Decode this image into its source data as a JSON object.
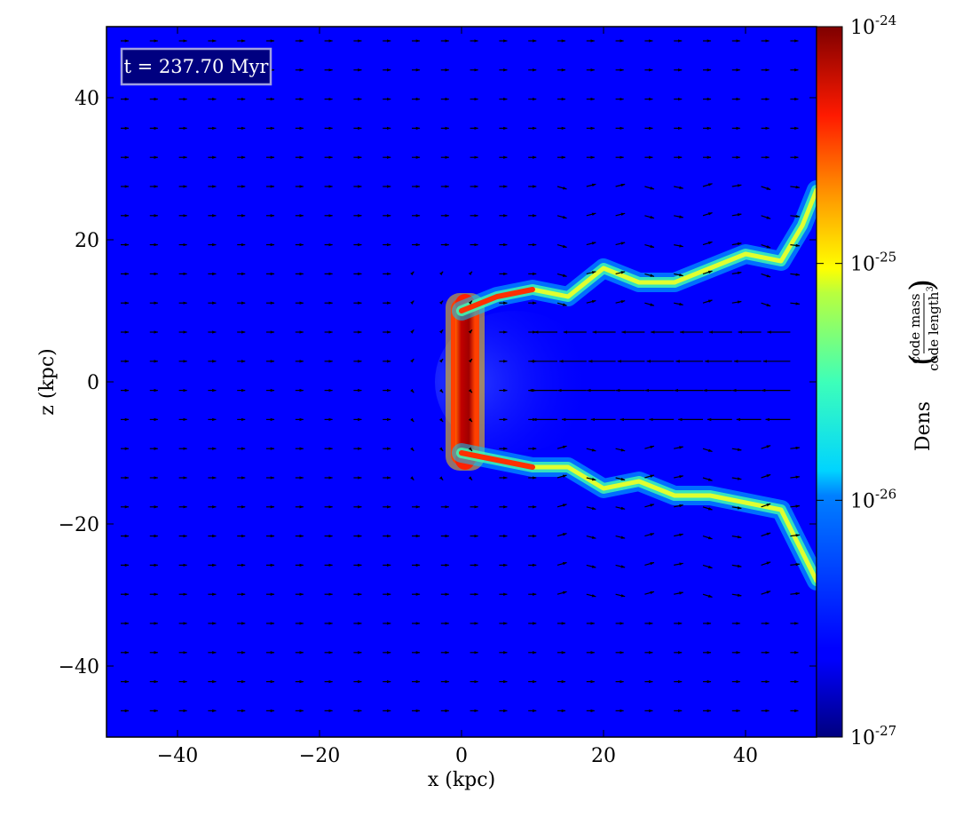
{
  "chart_data": {
    "type": "heatmap",
    "title": "",
    "annotation": "t = 237.70 Myr",
    "xlabel": "x (kpc)",
    "ylabel": "z (kpc)",
    "xlim": [
      -50,
      50
    ],
    "ylim": [
      -50,
      50
    ],
    "x_ticks": [
      -40,
      -20,
      0,
      20,
      40
    ],
    "x_tick_labels": [
      "−40",
      "−20",
      "0",
      "20",
      "40"
    ],
    "y_ticks": [
      -40,
      -20,
      0,
      20,
      40
    ],
    "y_tick_labels": [
      "−40",
      "−20",
      "0",
      "20",
      "40"
    ],
    "colormap": "jet",
    "colorbar": {
      "label_main": "Dens",
      "label_numerator": "code mass",
      "label_denominator": "code length",
      "label_denominator_exp": "3",
      "scale": "log",
      "range": [
        1e-27,
        1e-24
      ],
      "ticks": [
        {
          "value": 1e-24,
          "base": "10",
          "exp": "-24"
        },
        {
          "value": 1e-25,
          "base": "10",
          "exp": "-25"
        },
        {
          "value": 1e-26,
          "base": "10",
          "exp": "-26"
        },
        {
          "value": 1e-27,
          "base": "10",
          "exp": "-27"
        }
      ]
    },
    "background_density": 3e-27,
    "features": [
      {
        "name": "dense-core-column",
        "x_center": 0.5,
        "z_range": [
          -11,
          11
        ],
        "peak_density": 9e-25
      },
      {
        "name": "upper-tail",
        "points": [
          [
            0,
            10
          ],
          [
            5,
            12
          ],
          [
            10,
            13
          ],
          [
            15,
            12
          ],
          [
            20,
            16
          ],
          [
            25,
            14
          ],
          [
            30,
            14
          ],
          [
            35,
            16
          ],
          [
            40,
            18
          ],
          [
            45,
            17
          ],
          [
            48,
            22
          ],
          [
            50,
            27
          ]
        ]
      },
      {
        "name": "lower-tail",
        "points": [
          [
            0,
            -10
          ],
          [
            5,
            -11
          ],
          [
            10,
            -12
          ],
          [
            15,
            -12
          ],
          [
            20,
            -15
          ],
          [
            25,
            -14
          ],
          [
            30,
            -16
          ],
          [
            35,
            -16
          ],
          [
            40,
            -17
          ],
          [
            45,
            -18
          ],
          [
            48,
            -24
          ],
          [
            50,
            -28
          ]
        ]
      }
    ],
    "velocity_field": "quiver arrows, mostly pointing +x upstream; strong -x flow along z≈0 for x>12"
  },
  "colors": {
    "background_blue": "#0000ff",
    "time_box_fill": "#000080",
    "time_box_edge": "#a0a0e0",
    "arrow": "#000000"
  }
}
